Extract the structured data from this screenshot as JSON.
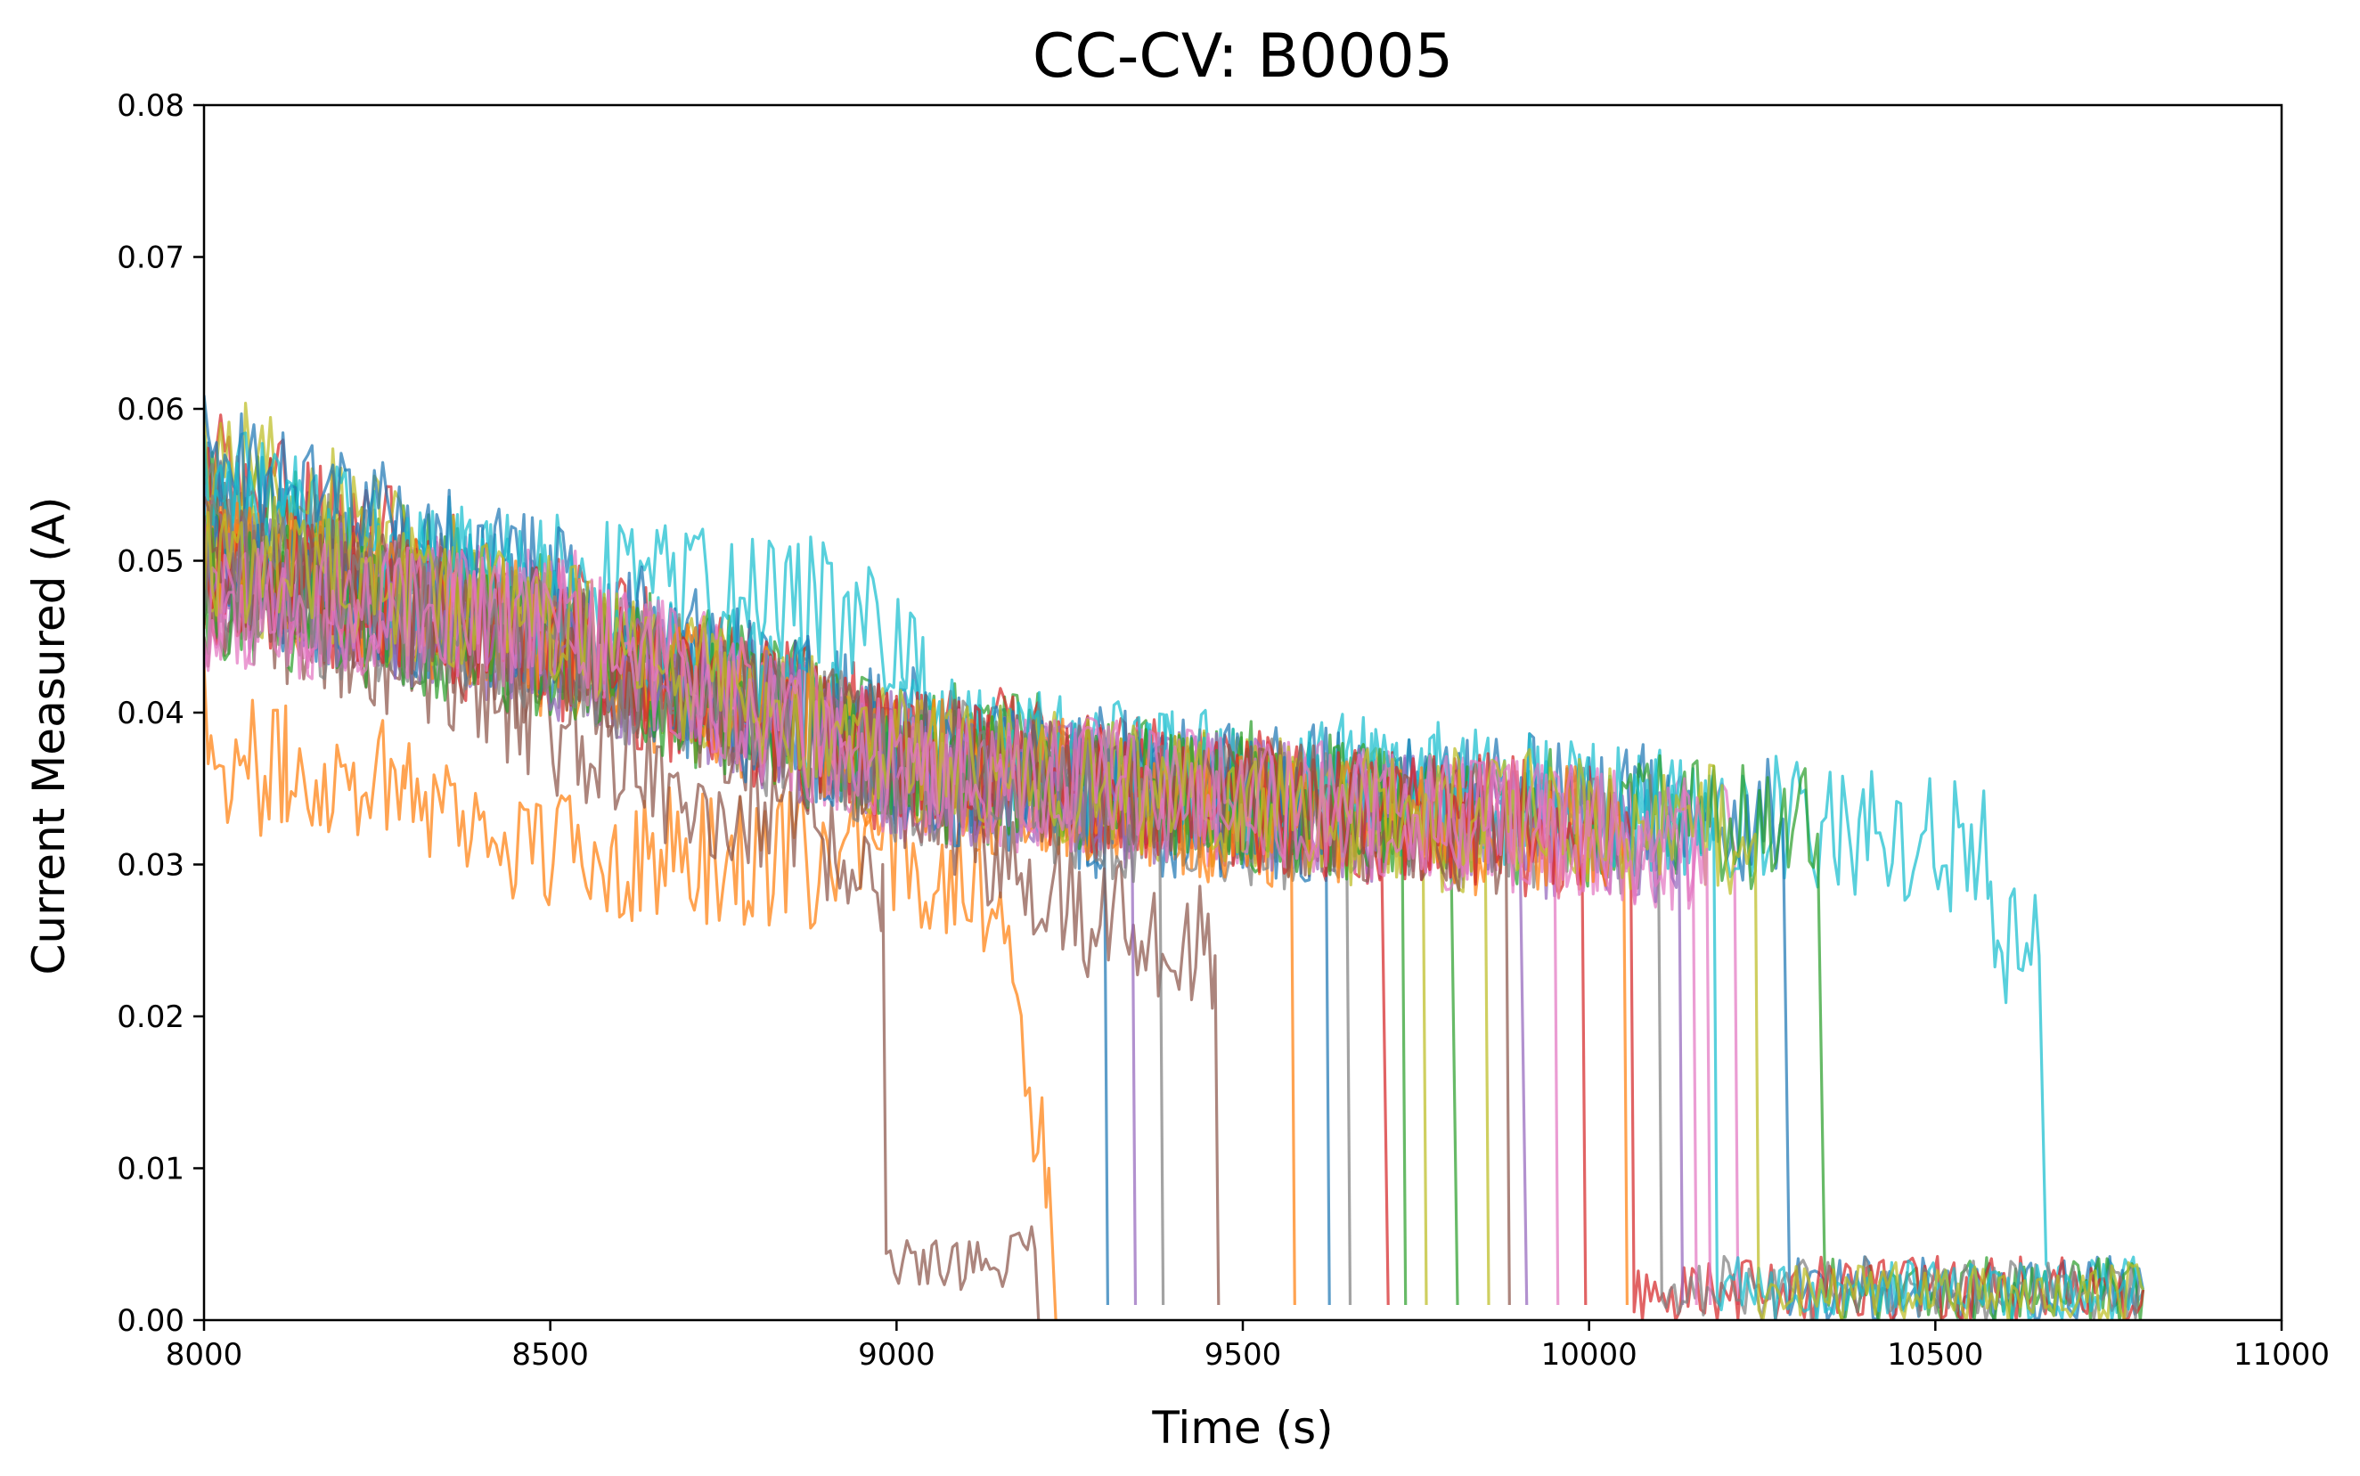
{
  "chart_data": {
    "type": "line",
    "title": "CC-CV: B0005",
    "xlabel": "Time (s)",
    "ylabel": "Current Measured (A)",
    "xlim": [
      8000,
      11000
    ],
    "ylim": [
      0.0,
      0.08
    ],
    "xticks": [
      8000,
      8500,
      9000,
      9500,
      10000,
      10500,
      11000
    ],
    "xtick_labels": [
      "8000",
      "8500",
      "9000",
      "9500",
      "10000",
      "10500",
      "11000"
    ],
    "yticks": [
      0.0,
      0.01,
      0.02,
      0.03,
      0.04,
      0.05,
      0.06,
      0.07,
      0.08
    ],
    "ytick_labels": [
      "0.00",
      "0.01",
      "0.02",
      "0.03",
      "0.04",
      "0.05",
      "0.06",
      "0.07",
      "0.08"
    ],
    "grid": false,
    "legend": "none",
    "palette": [
      "#1f77b4",
      "#ff7f0e",
      "#2ca02c",
      "#d62728",
      "#9467bd",
      "#8c564b",
      "#e377c2",
      "#7f7f7f",
      "#bcbd22",
      "#17becf"
    ],
    "series_count": 30,
    "series": [
      {
        "color": "#1f77b4",
        "x": [
          8000,
          8500,
          9000,
          9300,
          9305
        ],
        "y": [
          0.055,
          0.045,
          0.039,
          0.033,
          0.001
        ]
      },
      {
        "color": "#ff7f0e",
        "x": [
          8000,
          8010,
          8120,
          8290,
          8450,
          9000,
          9120,
          9220,
          9230
        ],
        "y": [
          0.045,
          0.037,
          0.036,
          0.036,
          0.031,
          0.03,
          0.03,
          0.01,
          0.0
        ]
      },
      {
        "color": "#2ca02c",
        "x": [
          8000,
          8500,
          9000,
          9500,
          9800,
          9810
        ],
        "y": [
          0.054,
          0.046,
          0.038,
          0.035,
          0.033,
          0.001
        ]
      },
      {
        "color": "#d62728",
        "x": [
          8000,
          8500,
          9000,
          9500,
          9700,
          9710
        ],
        "y": [
          0.056,
          0.046,
          0.038,
          0.035,
          0.032,
          0.001
        ]
      },
      {
        "color": "#9467bd",
        "x": [
          8000,
          8500,
          9000,
          9500,
          9900,
          9910
        ],
        "y": [
          0.05,
          0.044,
          0.037,
          0.034,
          0.032,
          0.001
        ]
      },
      {
        "color": "#8c564b",
        "x": [
          8000,
          8300,
          8600,
          8980,
          8985,
          9200,
          9205
        ],
        "y": [
          0.052,
          0.043,
          0.037,
          0.03,
          0.003,
          0.004,
          0.0
        ]
      },
      {
        "color": "#e377c2",
        "x": [
          8000,
          8500,
          9000,
          9500,
          10000,
          10210,
          10215
        ],
        "y": [
          0.048,
          0.047,
          0.036,
          0.034,
          0.032,
          0.031,
          0.001
        ]
      },
      {
        "color": "#7f7f7f",
        "x": [
          8000,
          8500,
          9000,
          9500,
          9650,
          9655
        ],
        "y": [
          0.053,
          0.045,
          0.037,
          0.033,
          0.032,
          0.001
        ]
      },
      {
        "color": "#bcbd22",
        "x": [
          8000,
          8500,
          9000,
          9500,
          9760,
          9765
        ],
        "y": [
          0.058,
          0.045,
          0.037,
          0.034,
          0.033,
          0.001
        ]
      },
      {
        "color": "#17becf",
        "x": [
          8000,
          8300,
          8900,
          9020,
          9050,
          9500,
          10000,
          10300,
          10580,
          10590,
          10650,
          10660,
          10800
        ],
        "y": [
          0.055,
          0.05,
          0.047,
          0.045,
          0.038,
          0.036,
          0.034,
          0.033,
          0.031,
          0.024,
          0.024,
          0.002,
          0.002
        ]
      },
      {
        "color": "#1f77b4",
        "x": [
          8000,
          8500,
          9000,
          9500,
          10000,
          10280,
          10290,
          10800
        ],
        "y": [
          0.057,
          0.048,
          0.038,
          0.035,
          0.034,
          0.033,
          0.002,
          0.002
        ]
      },
      {
        "color": "#ff7f0e",
        "x": [
          8000,
          8500,
          9000,
          9500,
          9570,
          9575
        ],
        "y": [
          0.05,
          0.044,
          0.036,
          0.033,
          0.032,
          0.001
        ]
      },
      {
        "color": "#2ca02c",
        "x": [
          8000,
          8500,
          9000,
          9500,
          10000,
          10330,
          10340,
          10800
        ],
        "y": [
          0.05,
          0.045,
          0.037,
          0.034,
          0.033,
          0.032,
          0.002,
          0.002
        ]
      },
      {
        "color": "#d62728",
        "x": [
          8000,
          8500,
          9000,
          9500,
          10000,
          10060,
          10065,
          10800
        ],
        "y": [
          0.049,
          0.044,
          0.036,
          0.034,
          0.032,
          0.032,
          0.002,
          0.002
        ]
      },
      {
        "color": "#9467bd",
        "x": [
          8000,
          8500,
          9000,
          9500,
          10000,
          10130,
          10135
        ],
        "y": [
          0.05,
          0.045,
          0.036,
          0.034,
          0.032,
          0.031,
          0.001
        ]
      },
      {
        "color": "#8c564b",
        "x": [
          8000,
          8500,
          9000,
          9300,
          9460,
          9465
        ],
        "y": [
          0.047,
          0.043,
          0.036,
          0.026,
          0.024,
          0.001
        ]
      },
      {
        "color": "#e377c2",
        "x": [
          8000,
          8500,
          9000,
          9500,
          9950,
          9955
        ],
        "y": [
          0.048,
          0.046,
          0.036,
          0.034,
          0.033,
          0.001
        ]
      },
      {
        "color": "#7f7f7f",
        "x": [
          8000,
          8500,
          9000,
          9500,
          10100,
          10105,
          10800
        ],
        "y": [
          0.047,
          0.045,
          0.037,
          0.034,
          0.032,
          0.002,
          0.002
        ]
      },
      {
        "color": "#bcbd22",
        "x": [
          8000,
          8500,
          9000,
          9500,
          9850,
          9855
        ],
        "y": [
          0.05,
          0.045,
          0.037,
          0.034,
          0.032,
          0.001
        ]
      },
      {
        "color": "#17becf",
        "x": [
          8000,
          8500,
          9000,
          9500,
          10000,
          10180,
          10185,
          10800
        ],
        "y": [
          0.053,
          0.047,
          0.038,
          0.035,
          0.034,
          0.033,
          0.002,
          0.002
        ]
      },
      {
        "color": "#1f77b4",
        "x": [
          8000,
          8500,
          9000,
          9500,
          9620,
          9625
        ],
        "y": [
          0.049,
          0.045,
          0.036,
          0.033,
          0.033,
          0.001
        ]
      },
      {
        "color": "#ff7f0e",
        "x": [
          8000,
          8500,
          9000,
          9500,
          10000,
          10050,
          10055
        ],
        "y": [
          0.05,
          0.045,
          0.037,
          0.033,
          0.032,
          0.031,
          0.001
        ]
      },
      {
        "color": "#2ca02c",
        "x": [
          8000,
          8500,
          9000,
          9500,
          9730,
          9735
        ],
        "y": [
          0.048,
          0.044,
          0.036,
          0.034,
          0.033,
          0.001
        ]
      },
      {
        "color": "#d62728",
        "x": [
          8000,
          8500,
          9000,
          9500,
          9900,
          9990,
          9995
        ],
        "y": [
          0.05,
          0.045,
          0.037,
          0.034,
          0.033,
          0.03,
          0.001
        ]
      },
      {
        "color": "#9467bd",
        "x": [
          8000,
          8500,
          9000,
          9340,
          9345
        ],
        "y": [
          0.049,
          0.044,
          0.037,
          0.033,
          0.001
        ]
      },
      {
        "color": "#8c564b",
        "x": [
          8000,
          8500,
          9000,
          9500,
          9880,
          9885
        ],
        "y": [
          0.05,
          0.045,
          0.037,
          0.034,
          0.032,
          0.001
        ]
      },
      {
        "color": "#e377c2",
        "x": [
          8000,
          8500,
          9000,
          9500,
          10000,
          10150,
          10155
        ],
        "y": [
          0.047,
          0.046,
          0.037,
          0.034,
          0.032,
          0.031,
          0.001
        ]
      },
      {
        "color": "#7f7f7f",
        "x": [
          8000,
          8500,
          9000,
          9380,
          9385
        ],
        "y": [
          0.05,
          0.044,
          0.036,
          0.033,
          0.001
        ]
      },
      {
        "color": "#bcbd22",
        "x": [
          8000,
          8500,
          9000,
          9500,
          10000,
          10240,
          10245,
          10800
        ],
        "y": [
          0.051,
          0.046,
          0.037,
          0.034,
          0.033,
          0.032,
          0.002,
          0.002
        ]
      },
      {
        "color": "#e377c2",
        "x": [
          8000,
          8500,
          9000,
          9500,
          10000,
          10170,
          10175
        ],
        "y": [
          0.047,
          0.046,
          0.036,
          0.034,
          0.032,
          0.031,
          0.001
        ]
      }
    ]
  }
}
